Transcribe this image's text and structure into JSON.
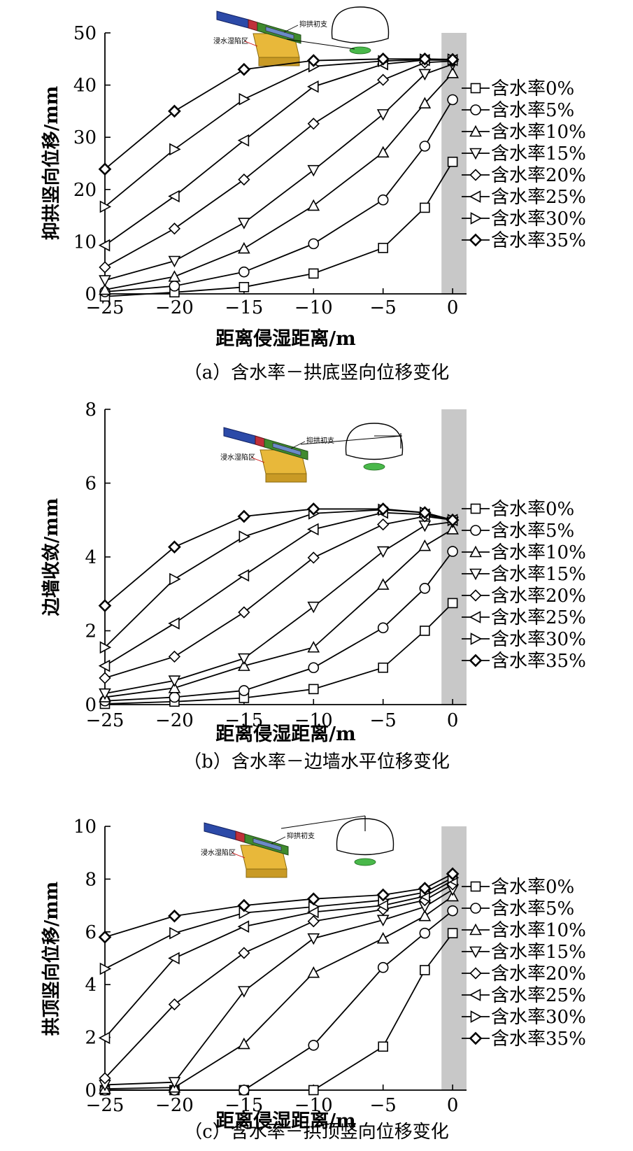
{
  "chart_data": [
    {
      "type": "line",
      "ylabel": "抑拱竖向位移/mm",
      "xlabel": "距离侵湿距离/m",
      "caption": "（a）含水率－拱底竖向位移变化",
      "x_ticks": [
        "−25",
        "−20",
        "−15",
        "−10",
        "−5",
        "0"
      ],
      "y_ticks": [
        "0",
        "10",
        "20",
        "30",
        "40",
        "50"
      ],
      "xlim": [
        -25,
        1
      ],
      "ylim": [
        0,
        50
      ],
      "shaded_x": [
        -0.8,
        1
      ],
      "inset_labels": [
        "抑拱初支",
        "浸水湿陷区"
      ],
      "x": [
        -25,
        -20,
        -15,
        -10,
        -5,
        -2,
        0
      ],
      "series": [
        {
          "name": "含水率0%",
          "marker": "square",
          "values": [
            -0.5,
            0.3,
            1.3,
            3.9,
            8.8,
            16.5,
            25.3
          ]
        },
        {
          "name": "含水率5%",
          "marker": "circle",
          "values": [
            0.4,
            1.5,
            4.2,
            9.6,
            18.0,
            28.3,
            37.2
          ]
        },
        {
          "name": "含水率10%",
          "marker": "triangle-up",
          "values": [
            0.8,
            3.3,
            8.7,
            16.9,
            27.1,
            36.5,
            42.3
          ]
        },
        {
          "name": "含水率15%",
          "marker": "triangle-down",
          "values": [
            2.6,
            6.3,
            13.6,
            23.7,
            34.4,
            42.1,
            44.0
          ]
        },
        {
          "name": "含水率20%",
          "marker": "diamond",
          "values": [
            5.1,
            12.5,
            21.9,
            32.6,
            41.0,
            44.3,
            44.6
          ]
        },
        {
          "name": "含水率25%",
          "marker": "triangle-left",
          "values": [
            9.3,
            18.7,
            29.4,
            39.7,
            44.0,
            44.8,
            44.8
          ]
        },
        {
          "name": "含水率30%",
          "marker": "triangle-right",
          "values": [
            16.7,
            27.7,
            37.3,
            43.6,
            44.6,
            44.9,
            44.9
          ]
        },
        {
          "name": "含水率35%",
          "marker": "diamond-bold",
          "values": [
            23.9,
            35.0,
            43.0,
            44.7,
            45.0,
            45.0,
            44.9
          ]
        }
      ]
    },
    {
      "type": "line",
      "ylabel": "边墙收敛/mm",
      "xlabel": "距离侵湿距离/m",
      "caption": "（b）含水率－边墙水平位移变化",
      "x_ticks": [
        "−25",
        "−20",
        "−15",
        "−10",
        "−5",
        "0"
      ],
      "y_ticks": [
        "0",
        "2",
        "4",
        "6",
        "8"
      ],
      "xlim": [
        -25,
        1
      ],
      "ylim": [
        0,
        8
      ],
      "shaded_x": [
        -0.8,
        1
      ],
      "inset_labels": [
        "抑拱初支",
        "浸水湿陷区"
      ],
      "x": [
        -25,
        -20,
        -15,
        -10,
        -5,
        -2,
        0
      ],
      "series": [
        {
          "name": "含水率0%",
          "marker": "square",
          "values": [
            0.02,
            0.08,
            0.18,
            0.42,
            1.0,
            2.0,
            2.75
          ]
        },
        {
          "name": "含水率5%",
          "marker": "circle",
          "values": [
            0.1,
            0.2,
            0.38,
            1.0,
            2.08,
            3.15,
            4.15
          ]
        },
        {
          "name": "含水率10%",
          "marker": "triangle-up",
          "values": [
            0.2,
            0.45,
            1.05,
            1.55,
            3.25,
            4.3,
            4.75
          ]
        },
        {
          "name": "含水率15%",
          "marker": "triangle-down",
          "values": [
            0.3,
            0.65,
            1.25,
            2.65,
            4.15,
            4.85,
            4.95
          ]
        },
        {
          "name": "含水率20%",
          "marker": "diamond",
          "values": [
            0.72,
            1.3,
            2.5,
            3.98,
            4.88,
            5.1,
            5.0
          ]
        },
        {
          "name": "含水率25%",
          "marker": "triangle-left",
          "values": [
            1.05,
            2.2,
            3.5,
            4.75,
            5.2,
            5.15,
            5.0
          ]
        },
        {
          "name": "含水率30%",
          "marker": "triangle-right",
          "values": [
            1.55,
            3.4,
            4.55,
            5.18,
            5.28,
            5.2,
            5.0
          ]
        },
        {
          "name": "含水率35%",
          "marker": "diamond-bold",
          "values": [
            2.68,
            4.27,
            5.1,
            5.3,
            5.3,
            5.2,
            5.0
          ]
        }
      ]
    },
    {
      "type": "line",
      "ylabel": "拱顶竖向位移/mm",
      "xlabel": "距离侵湿距离/m",
      "caption": "（c）含水率－拱顶竖向位移变化",
      "x_ticks": [
        "−25",
        "−20",
        "−15",
        "−10",
        "−5",
        "0"
      ],
      "y_ticks": [
        "0",
        "2",
        "4",
        "6",
        "8",
        "10"
      ],
      "xlim": [
        -25,
        1
      ],
      "ylim": [
        0,
        10
      ],
      "shaded_x": [
        -0.8,
        1
      ],
      "inset_labels": [
        "抑拱初支",
        "浸水湿陷区"
      ],
      "x": [
        -25,
        -20,
        -15,
        -10,
        -5,
        -2,
        0
      ],
      "series": [
        {
          "name": "含水率0%",
          "marker": "square",
          "values": [
            0.0,
            0.0,
            0.0,
            0.0,
            1.65,
            4.55,
            5.95
          ]
        },
        {
          "name": "含水率5%",
          "marker": "circle",
          "values": [
            0.0,
            0.0,
            0.0,
            1.7,
            4.65,
            5.95,
            6.8
          ]
        },
        {
          "name": "含水率10%",
          "marker": "triangle-up",
          "values": [
            0.05,
            0.1,
            1.75,
            4.45,
            5.75,
            6.6,
            7.35
          ]
        },
        {
          "name": "含水率15%",
          "marker": "triangle-down",
          "values": [
            0.2,
            0.3,
            3.75,
            5.75,
            6.45,
            6.95,
            7.6
          ]
        },
        {
          "name": "含水率20%",
          "marker": "diamond",
          "values": [
            0.45,
            3.25,
            5.2,
            6.4,
            6.85,
            7.2,
            7.8
          ]
        },
        {
          "name": "含水率25%",
          "marker": "triangle-left",
          "values": [
            1.98,
            5.0,
            6.2,
            6.75,
            7.0,
            7.35,
            7.95
          ]
        },
        {
          "name": "含水率30%",
          "marker": "triangle-right",
          "values": [
            4.6,
            5.95,
            6.72,
            6.95,
            7.2,
            7.5,
            8.05
          ]
        },
        {
          "name": "含水率35%",
          "marker": "diamond-bold",
          "values": [
            5.8,
            6.6,
            7.0,
            7.25,
            7.4,
            7.65,
            8.2
          ]
        }
      ]
    }
  ],
  "colors": {
    "line": "#000000",
    "shade": "#c8c8c8",
    "tunnel_blue": "#2c4aa8",
    "tunnel_red": "#c0303a",
    "tunnel_green": "#3f8a2e",
    "soil_yellow": "#e8b83a",
    "soil_green": "#49b84a"
  }
}
